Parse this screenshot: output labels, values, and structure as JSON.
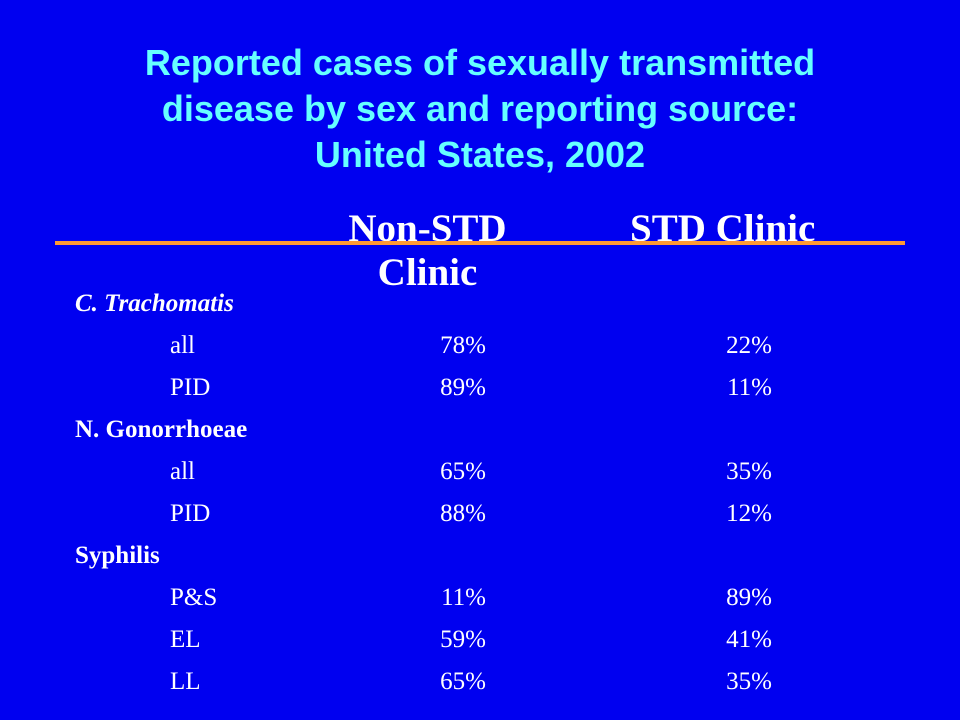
{
  "title": {
    "lines": [
      "Reported cases of sexually transmitted",
      "disease by sex and reporting source:",
      "United States, 2002"
    ]
  },
  "colors": {
    "background": "#0000f0",
    "title": "#66ffff",
    "rule": "#ff9933",
    "text": "#ffffff"
  },
  "headers": {
    "non_std": "Non-STD Clinic",
    "std": "STD Clinic"
  },
  "rows": [
    {
      "label": "C. Trachomatis",
      "kind": "category",
      "italic": true
    },
    {
      "label": "all",
      "kind": "sub",
      "non_std": "78%",
      "std": "22%"
    },
    {
      "label": "PID",
      "kind": "sub",
      "non_std": "89%",
      "std": "11%"
    },
    {
      "label": "N. Gonorrhoeae",
      "kind": "category",
      "italic": false
    },
    {
      "label": "all",
      "kind": "sub",
      "non_std": "65%",
      "std": "35%"
    },
    {
      "label": "PID",
      "kind": "sub",
      "non_std": "88%",
      "std": "12%"
    },
    {
      "label": "Syphilis",
      "kind": "category",
      "italic": false
    },
    {
      "label": "P&S",
      "kind": "sub",
      "non_std": "11%",
      "std": "89%"
    },
    {
      "label": "EL",
      "kind": "sub",
      "non_std": "59%",
      "std": "41%"
    },
    {
      "label": "LL",
      "kind": "sub",
      "non_std": "65%",
      "std": "35%"
    }
  ]
}
